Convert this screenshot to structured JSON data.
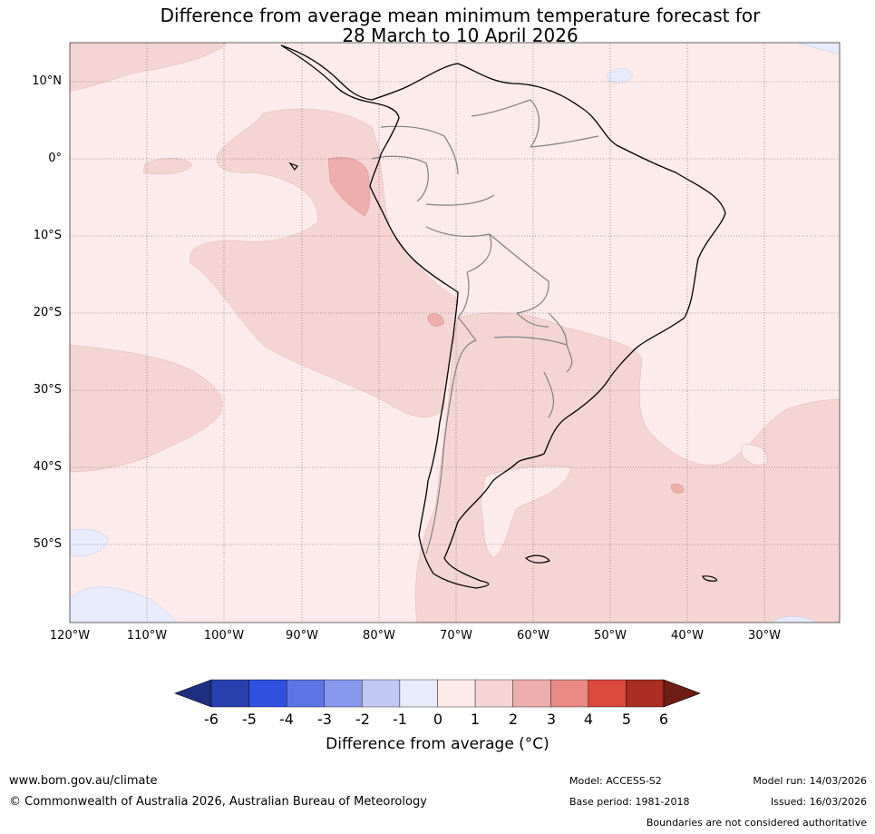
{
  "title": {
    "line1": "Difference from average mean minimum temperature forecast for",
    "line2": "28 March to 10 April 2026"
  },
  "map": {
    "region": "South America",
    "lat_labels": [
      "10°N",
      "0°",
      "10°S",
      "20°S",
      "30°S",
      "40°S",
      "50°S"
    ],
    "lon_labels": [
      "120°W",
      "110°W",
      "100°W",
      "90°W",
      "80°W",
      "70°W",
      "60°W",
      "50°W",
      "40°W",
      "30°W"
    ],
    "anomaly_regions": [
      {
        "name": "background",
        "bin": "0 to 1"
      },
      {
        "name": "eastern Pacific",
        "bin": "1 to 2"
      },
      {
        "name": "southern South America",
        "bin": "1 to 2"
      },
      {
        "name": "South Atlantic",
        "bin": "1 to 2"
      },
      {
        "name": "off Ecuador",
        "bin": "2 to 3"
      },
      {
        "name": "near 20°S 72°W",
        "bin": "2 to 3"
      },
      {
        "name": "near 43°S 41°W",
        "bin": "2 to 3"
      },
      {
        "name": "south-west Pacific",
        "bin": "-1 to 0"
      },
      {
        "name": "north-east Atlantic",
        "bin": "-1 to 0"
      }
    ]
  },
  "colorbar": {
    "ticks": [
      "-6",
      "-5",
      "-4",
      "-3",
      "-2",
      "-1",
      "0",
      "1",
      "2",
      "3",
      "4",
      "5",
      "6"
    ],
    "colors": [
      "#1f2f80",
      "#2a3fae",
      "#3050e0",
      "#5e74e6",
      "#8898ec",
      "#c2c8f4",
      "#e8ebfb",
      "#fcebea",
      "#f5d5d3",
      "#eeaeab",
      "#e98a84",
      "#da4b3e",
      "#a92d20",
      "#6f1d14"
    ],
    "label": "Difference from average (°C)"
  },
  "footer": {
    "url": "www.bom.gov.au/climate",
    "copyright": "© Commonwealth of Australia 2026, Australian Bureau of Meteorology",
    "model": "Model: ACCESS-S2",
    "base_period": "Base period: 1981-2018",
    "model_run": "Model run: 14/03/2026",
    "issued": "Issued: 16/03/2026",
    "boundaries": "Boundaries are not considered authoritative"
  }
}
